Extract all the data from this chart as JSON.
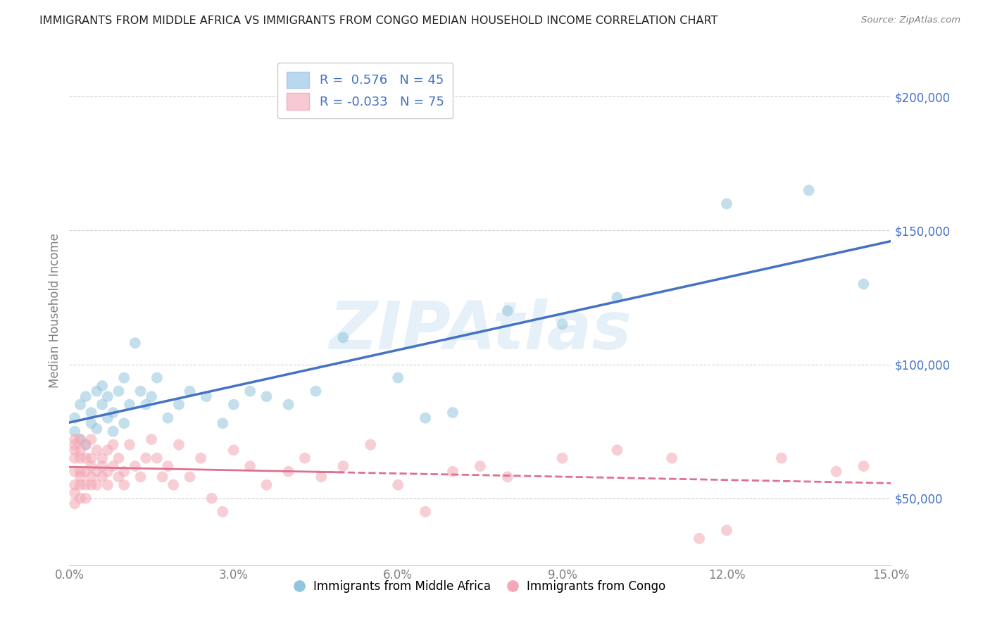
{
  "title": "IMMIGRANTS FROM MIDDLE AFRICA VS IMMIGRANTS FROM CONGO MEDIAN HOUSEHOLD INCOME CORRELATION CHART",
  "source": "Source: ZipAtlas.com",
  "ylabel": "Median Household Income",
  "xlim": [
    0,
    0.15
  ],
  "ylim": [
    25000,
    215000
  ],
  "yticks": [
    50000,
    100000,
    150000,
    200000
  ],
  "watermark": "ZIPAtlas",
  "series": [
    {
      "name": "Immigrants from Middle Africa",
      "color": "#92c5de",
      "R": 0.576,
      "N": 45,
      "x": [
        0.001,
        0.001,
        0.002,
        0.002,
        0.003,
        0.003,
        0.004,
        0.004,
        0.005,
        0.005,
        0.006,
        0.006,
        0.007,
        0.007,
        0.008,
        0.008,
        0.009,
        0.01,
        0.01,
        0.011,
        0.012,
        0.013,
        0.014,
        0.015,
        0.016,
        0.018,
        0.02,
        0.022,
        0.025,
        0.028,
        0.03,
        0.033,
        0.036,
        0.04,
        0.045,
        0.05,
        0.06,
        0.065,
        0.07,
        0.08,
        0.09,
        0.1,
        0.12,
        0.135,
        0.145
      ],
      "y": [
        75000,
        80000,
        72000,
        85000,
        70000,
        88000,
        78000,
        82000,
        90000,
        76000,
        85000,
        92000,
        80000,
        88000,
        75000,
        82000,
        90000,
        78000,
        95000,
        85000,
        108000,
        90000,
        85000,
        88000,
        95000,
        80000,
        85000,
        90000,
        88000,
        78000,
        85000,
        90000,
        88000,
        85000,
        90000,
        110000,
        95000,
        80000,
        82000,
        120000,
        115000,
        125000,
        160000,
        165000,
        130000
      ]
    },
    {
      "name": "Immigrants from Congo",
      "color": "#f4a7b4",
      "R": -0.033,
      "N": 75,
      "x": [
        0.001,
        0.001,
        0.001,
        0.001,
        0.001,
        0.001,
        0.001,
        0.001,
        0.002,
        0.002,
        0.002,
        0.002,
        0.002,
        0.002,
        0.002,
        0.003,
        0.003,
        0.003,
        0.003,
        0.003,
        0.004,
        0.004,
        0.004,
        0.004,
        0.004,
        0.005,
        0.005,
        0.005,
        0.006,
        0.006,
        0.006,
        0.007,
        0.007,
        0.007,
        0.008,
        0.008,
        0.009,
        0.009,
        0.01,
        0.01,
        0.011,
        0.012,
        0.013,
        0.014,
        0.015,
        0.016,
        0.017,
        0.018,
        0.019,
        0.02,
        0.022,
        0.024,
        0.026,
        0.028,
        0.03,
        0.033,
        0.036,
        0.04,
        0.043,
        0.046,
        0.05,
        0.055,
        0.06,
        0.065,
        0.07,
        0.075,
        0.08,
        0.09,
        0.1,
        0.11,
        0.115,
        0.12,
        0.13,
        0.14,
        0.145
      ],
      "y": [
        72000,
        68000,
        65000,
        60000,
        55000,
        52000,
        48000,
        70000,
        65000,
        60000,
        55000,
        50000,
        68000,
        72000,
        58000,
        65000,
        60000,
        55000,
        70000,
        50000,
        62000,
        58000,
        65000,
        72000,
        55000,
        68000,
        60000,
        55000,
        62000,
        58000,
        65000,
        55000,
        60000,
        68000,
        62000,
        70000,
        58000,
        65000,
        60000,
        55000,
        70000,
        62000,
        58000,
        65000,
        72000,
        65000,
        58000,
        62000,
        55000,
        70000,
        58000,
        65000,
        50000,
        45000,
        68000,
        62000,
        55000,
        60000,
        65000,
        58000,
        62000,
        70000,
        55000,
        45000,
        60000,
        62000,
        58000,
        65000,
        68000,
        65000,
        35000,
        38000,
        65000,
        60000,
        62000
      ]
    }
  ],
  "trend_blue_color": "#4472c4",
  "trend_pink_color": "#e07090",
  "legend_blue_label": "R =  0.576   N = 45",
  "legend_pink_label": "R = -0.033   N = 75"
}
